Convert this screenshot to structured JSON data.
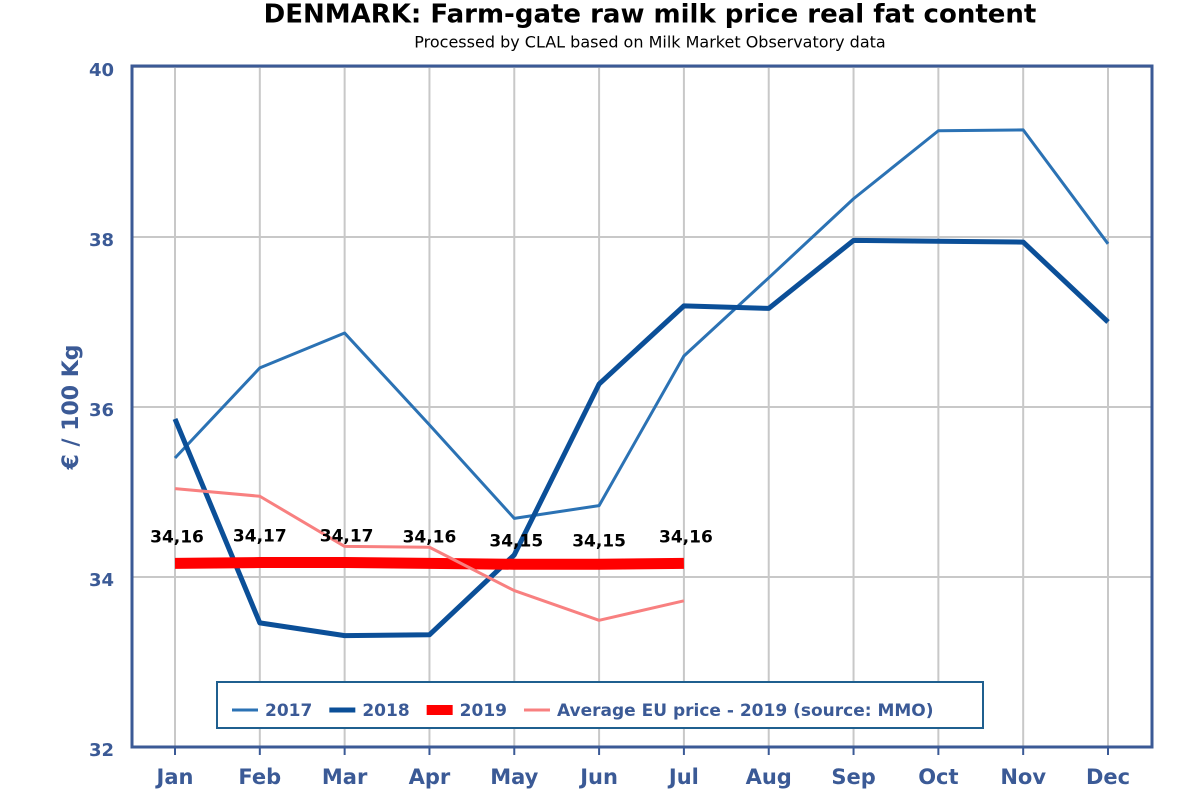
{
  "chart_data": {
    "type": "line",
    "title": "DENMARK: Farm-gate raw milk price real fat content",
    "subtitle": "Processed by CLAL based on Milk Market Observatory data",
    "y_label": "€ / 100 Kg",
    "categories": [
      "Jan",
      "Feb",
      "Mar",
      "Apr",
      "May",
      "Jun",
      "Jul",
      "Aug",
      "Sep",
      "Oct",
      "Nov",
      "Dec"
    ],
    "series": [
      {
        "name": "2017",
        "color": "#2b72b4",
        "width": 3,
        "values": [
          35.4,
          36.46,
          36.87,
          35.79,
          34.69,
          34.84,
          36.6,
          37.52,
          38.45,
          39.25,
          39.26,
          37.92
        ]
      },
      {
        "name": "2018",
        "color": "#0b4f98",
        "width": 5,
        "values": [
          35.86,
          33.46,
          33.31,
          33.32,
          34.26,
          36.27,
          37.19,
          37.16,
          37.96,
          37.95,
          37.94,
          37.0
        ]
      },
      {
        "name": "2019",
        "color": "#ff0000",
        "width": 11,
        "values": [
          34.16,
          34.17,
          34.17,
          34.16,
          34.15,
          34.15,
          34.16,
          null,
          null,
          null,
          null,
          null
        ],
        "value_labels": [
          "34,16",
          "34,17",
          "34,17",
          "34,16",
          "34,15",
          "34,15",
          "34,16",
          null,
          null,
          null,
          null,
          null
        ]
      },
      {
        "name": "Average EU price - 2019 (source: MMO)",
        "color": "#f88080",
        "width": 3,
        "values": [
          35.04,
          34.95,
          34.36,
          34.35,
          33.84,
          33.49,
          33.72,
          null,
          null,
          null,
          null,
          null
        ]
      }
    ],
    "ylim": [
      32,
      40
    ],
    "yticks": [
      32,
      34,
      36,
      38,
      40
    ],
    "grid": true
  }
}
